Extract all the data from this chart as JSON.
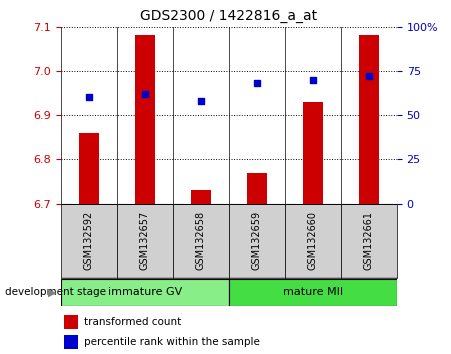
{
  "title": "GDS2300 / 1422816_a_at",
  "categories": [
    "GSM132592",
    "GSM132657",
    "GSM132658",
    "GSM132659",
    "GSM132660",
    "GSM132661"
  ],
  "bar_values": [
    6.86,
    7.08,
    6.73,
    6.77,
    6.93,
    7.08
  ],
  "bar_base": 6.7,
  "percentile_values": [
    60,
    62,
    58,
    68,
    70,
    72
  ],
  "ylim": [
    6.7,
    7.1
  ],
  "yticks": [
    6.7,
    6.8,
    6.9,
    7.0,
    7.1
  ],
  "y2lim": [
    0,
    100
  ],
  "y2ticks": [
    0,
    25,
    50,
    75,
    100
  ],
  "y2ticklabels": [
    "0",
    "25",
    "50",
    "75",
    "100%"
  ],
  "bar_color": "#cc0000",
  "dot_color": "#0000cc",
  "group1_label": "immature GV",
  "group2_label": "mature MII",
  "group1_color": "#88ee88",
  "group2_color": "#44dd44",
  "stage_label": "development stage",
  "legend_bar_label": "transformed count",
  "legend_dot_label": "percentile rank within the sample",
  "left_tick_color": "#cc0000",
  "right_tick_color": "#0000cc",
  "bar_width": 0.35,
  "figsize": [
    4.51,
    3.54
  ],
  "dpi": 100
}
